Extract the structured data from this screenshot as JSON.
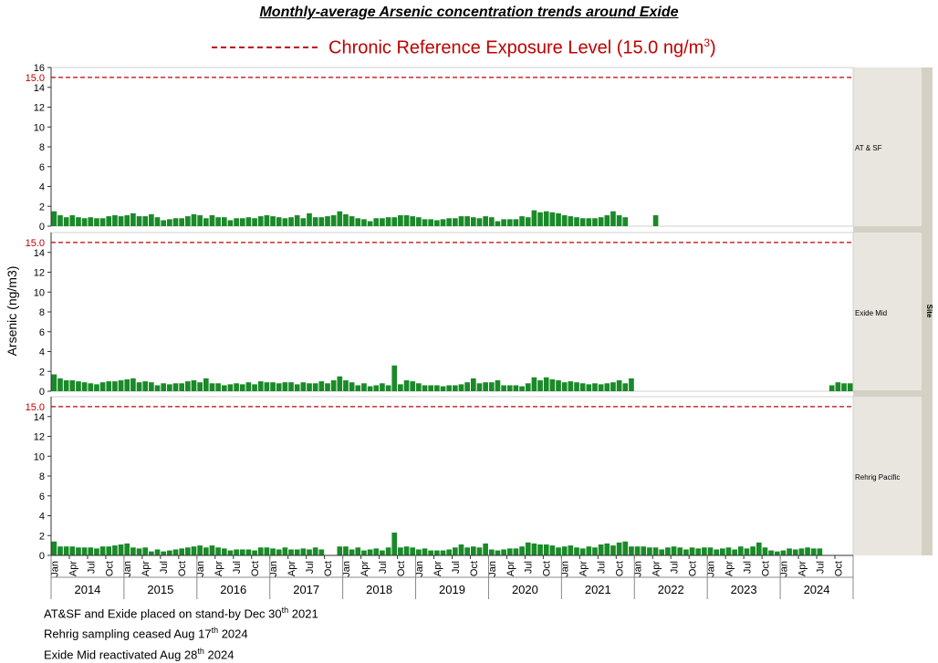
{
  "title": "Monthly-average Arsenic concentration trends around Exide",
  "legend": {
    "label_pre": "Chronic Reference Exposure Level (15.0 ng/m",
    "label_sup": "3",
    "label_post": ")"
  },
  "notes": [
    {
      "pre": "AT&SF and Exide placed on stand-by Dec 30",
      "sup": "th",
      "post": " 2021"
    },
    {
      "pre": "Rehrig sampling ceased Aug 17",
      "sup": "th",
      "post": " 2024"
    },
    {
      "pre": "Exide Mid reactivated Aug 28",
      "sup": "th",
      "post": " 2024"
    }
  ],
  "colors": {
    "bar": "#1a8a28",
    "reference": "#c00000",
    "strip": "#e8e6df",
    "strip_bar": "#d4d1c4"
  },
  "chart_data": {
    "type": "bar",
    "ylabel": "Arsenic (ng/m3)",
    "ylim": [
      0,
      16
    ],
    "yticks": [
      0,
      2,
      4,
      6,
      8,
      10,
      12,
      14,
      16
    ],
    "reference_line": {
      "value": 15.0,
      "label": "15.0"
    },
    "strip_label": "Site",
    "start": "2014-01",
    "month_tick_labels": [
      "Jan",
      "Apr",
      "Jul",
      "Oct"
    ],
    "years": [
      "2014",
      "2015",
      "2016",
      "2017",
      "2018",
      "2019",
      "2020",
      "2021",
      "2022",
      "2023",
      "2024"
    ],
    "panels": [
      {
        "name": "AT & SF",
        "values": [
          1.5,
          1.1,
          0.9,
          1.1,
          0.9,
          0.8,
          0.9,
          0.8,
          0.8,
          1.0,
          1.1,
          1.0,
          1.1,
          1.3,
          1.0,
          1.0,
          1.2,
          0.9,
          0.6,
          0.7,
          0.8,
          0.8,
          1.0,
          1.2,
          1.1,
          0.8,
          1.1,
          0.9,
          0.9,
          0.6,
          0.8,
          0.8,
          0.9,
          0.8,
          1.0,
          1.1,
          1.0,
          0.9,
          0.8,
          0.9,
          1.1,
          0.8,
          1.3,
          0.9,
          0.9,
          1.0,
          1.1,
          1.5,
          1.2,
          1.0,
          0.8,
          0.7,
          0.5,
          0.8,
          0.8,
          0.9,
          0.9,
          1.1,
          1.1,
          1.0,
          0.9,
          0.7,
          0.7,
          0.6,
          0.7,
          0.8,
          0.8,
          1.0,
          1.0,
          0.9,
          0.8,
          1.0,
          0.9,
          0.5,
          0.7,
          0.7,
          0.7,
          1.0,
          0.9,
          1.6,
          1.4,
          1.5,
          1.4,
          1.3,
          1.1,
          1.0,
          0.9,
          0.8,
          0.8,
          0.8,
          0.9,
          1.1,
          1.5,
          1.1,
          0.9,
          null,
          null,
          null,
          null,
          1.1,
          null,
          null,
          null,
          null,
          null,
          null,
          null,
          null,
          null,
          null,
          null,
          null,
          null,
          null,
          null,
          null,
          null,
          null,
          null,
          null,
          null,
          null,
          null,
          null,
          null,
          null,
          null,
          null,
          null,
          null,
          null,
          null
        ]
      },
      {
        "name": "Exide Mid",
        "values": [
          1.7,
          1.3,
          1.1,
          1.1,
          1.0,
          0.9,
          0.8,
          0.7,
          0.9,
          1.0,
          1.0,
          1.1,
          1.2,
          1.3,
          0.9,
          1.0,
          0.9,
          0.6,
          0.8,
          0.7,
          0.8,
          0.8,
          1.0,
          1.1,
          0.9,
          1.3,
          0.8,
          0.8,
          0.6,
          0.7,
          0.8,
          0.7,
          0.9,
          0.7,
          1.0,
          0.9,
          0.9,
          0.8,
          0.9,
          0.9,
          0.7,
          0.9,
          0.8,
          0.8,
          1.0,
          0.8,
          1.1,
          1.5,
          1.1,
          0.9,
          0.6,
          0.8,
          0.5,
          0.6,
          0.8,
          0.6,
          2.6,
          0.7,
          1.1,
          1.0,
          0.8,
          0.6,
          0.6,
          0.6,
          0.5,
          0.6,
          0.6,
          0.7,
          0.9,
          1.3,
          0.8,
          0.9,
          0.9,
          1.1,
          0.6,
          0.6,
          0.6,
          0.5,
          0.8,
          1.4,
          1.1,
          1.4,
          1.2,
          1.1,
          0.9,
          1.0,
          0.9,
          0.8,
          0.7,
          0.8,
          0.7,
          0.8,
          0.9,
          1.1,
          0.8,
          1.3,
          null,
          null,
          null,
          null,
          null,
          null,
          null,
          null,
          null,
          null,
          null,
          null,
          null,
          null,
          null,
          null,
          null,
          null,
          null,
          null,
          null,
          null,
          null,
          null,
          null,
          null,
          null,
          null,
          null,
          null,
          null,
          null,
          0.6,
          0.9,
          0.8,
          0.8
        ]
      },
      {
        "name": "Rehrig Pacific",
        "values": [
          1.4,
          0.9,
          0.9,
          0.9,
          0.8,
          0.8,
          0.8,
          0.7,
          0.9,
          0.9,
          1.0,
          1.1,
          1.2,
          0.8,
          0.7,
          0.8,
          0.4,
          0.6,
          0.4,
          0.5,
          0.6,
          0.7,
          0.8,
          0.9,
          1.0,
          0.8,
          1.0,
          0.8,
          0.7,
          0.5,
          0.6,
          0.6,
          0.6,
          0.5,
          0.8,
          0.8,
          0.7,
          0.6,
          0.8,
          0.6,
          0.6,
          0.7,
          0.6,
          0.8,
          0.6,
          null,
          null,
          0.9,
          0.9,
          0.6,
          0.8,
          0.5,
          0.6,
          0.7,
          0.5,
          0.8,
          2.3,
          0.8,
          0.9,
          0.8,
          0.6,
          0.7,
          0.5,
          0.5,
          0.5,
          0.6,
          0.8,
          1.1,
          0.8,
          0.9,
          0.8,
          1.2,
          0.6,
          0.5,
          0.6,
          0.7,
          0.7,
          0.9,
          1.3,
          1.2,
          1.1,
          1.1,
          1.0,
          0.8,
          0.9,
          1.0,
          0.8,
          0.7,
          0.9,
          0.8,
          1.1,
          1.2,
          1.0,
          1.3,
          1.4,
          0.9,
          0.9,
          0.9,
          0.8,
          0.8,
          0.6,
          0.8,
          0.9,
          0.8,
          0.6,
          0.8,
          0.7,
          0.8,
          0.8,
          0.6,
          0.7,
          0.8,
          0.6,
          0.9,
          0.7,
          0.9,
          1.3,
          0.8,
          0.5,
          0.4,
          0.5,
          0.7,
          0.6,
          0.7,
          0.8,
          0.7,
          0.7,
          null,
          null,
          null,
          null,
          null
        ]
      }
    ]
  }
}
